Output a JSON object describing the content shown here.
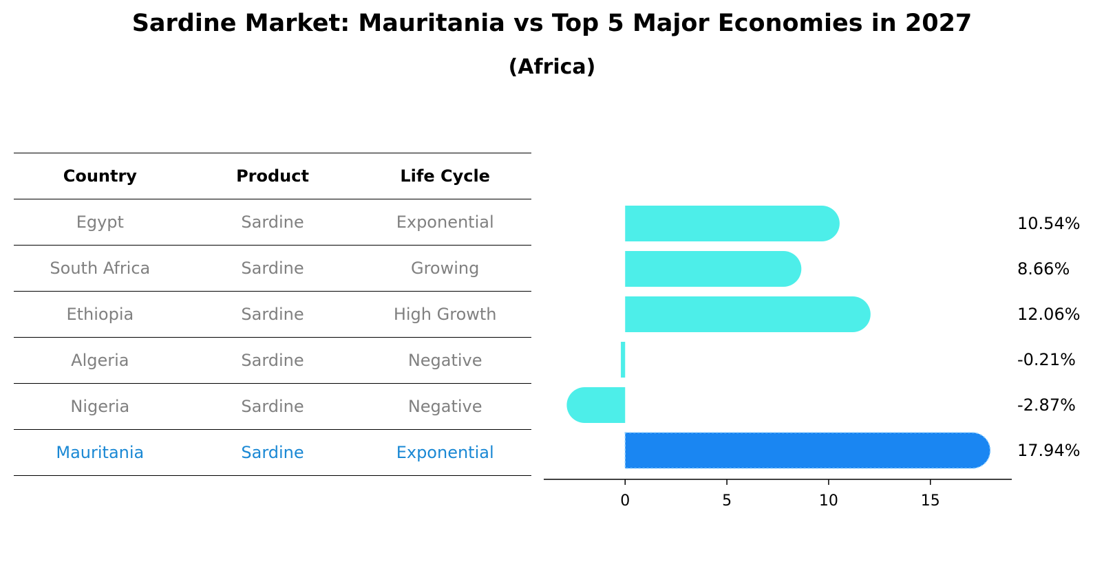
{
  "header": {
    "title": "Sardine Market: Mauritania vs Top 5 Major Economies in 2027",
    "subtitle": "(Africa)"
  },
  "table": {
    "columns": [
      "Country",
      "Product",
      "Life Cycle"
    ],
    "rows": [
      [
        "Egypt",
        "Sardine",
        "Exponential"
      ],
      [
        "South Africa",
        "Sardine",
        "Growing"
      ],
      [
        "Ethiopia",
        "Sardine",
        "High Growth"
      ],
      [
        "Algeria",
        "Sardine",
        "Negative"
      ],
      [
        "Nigeria",
        "Sardine",
        "Negative"
      ],
      [
        "Mauritania",
        "Sardine",
        "Exponential"
      ]
    ],
    "highlight_row": 5
  },
  "colors": {
    "bar": "#4deee9",
    "highlight_bar": "#1a86f2",
    "highlight_text": "#1a88d4",
    "muted_text": "#808080"
  },
  "chart_data": {
    "type": "bar",
    "orientation": "horizontal",
    "categories": [
      "Egypt",
      "South Africa",
      "Ethiopia",
      "Algeria",
      "Nigeria",
      "Mauritania"
    ],
    "values": [
      10.54,
      8.66,
      12.06,
      -0.21,
      -2.87,
      17.94
    ],
    "value_labels": [
      "10.54%",
      "8.66%",
      "12.06%",
      "-0.21%",
      "-2.87%",
      "17.94%"
    ],
    "xlim": [
      -4,
      19
    ],
    "xticks": [
      0,
      5,
      10,
      15
    ],
    "highlight_index": 5,
    "grid": false
  }
}
